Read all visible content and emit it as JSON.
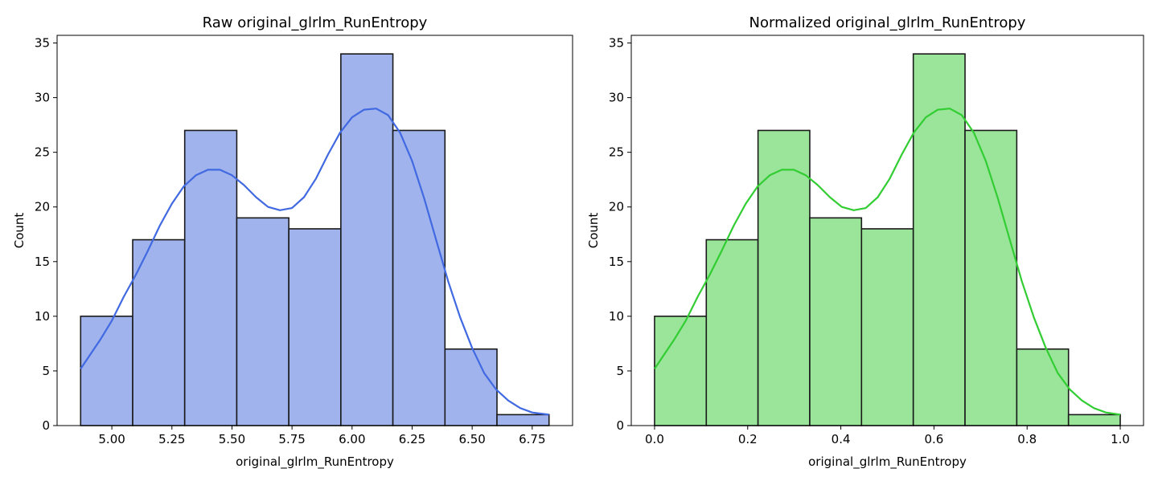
{
  "chart_data": [
    {
      "type": "bar",
      "title": "Raw original_glrlm_RunEntropy",
      "xlabel": "original_glrlm_RunEntropy",
      "ylabel": "Count",
      "bin_edges": [
        4.87,
        5.0867,
        5.3033,
        5.52,
        5.7367,
        5.9533,
        6.17,
        6.3867,
        6.6033,
        6.82
      ],
      "values": [
        10,
        17,
        27,
        19,
        18,
        34,
        27,
        7,
        1
      ],
      "xlim": [
        4.772,
        6.918
      ],
      "ylim": [
        0,
        35.7
      ],
      "xticks": [
        5.0,
        5.25,
        5.5,
        5.75,
        6.0,
        6.25,
        6.5,
        6.75
      ],
      "xtick_labels": [
        "5.00",
        "5.25",
        "5.50",
        "5.75",
        "6.00",
        "6.25",
        "6.50",
        "6.75"
      ],
      "yticks": [
        0,
        5,
        10,
        15,
        20,
        25,
        30,
        35
      ],
      "ytick_labels": [
        "0",
        "5",
        "10",
        "15",
        "20",
        "25",
        "30",
        "35"
      ],
      "kde": {
        "x": [
          4.87,
          4.95,
          5.0,
          5.05,
          5.1,
          5.15,
          5.2,
          5.25,
          5.3,
          5.35,
          5.4,
          5.45,
          5.5,
          5.55,
          5.6,
          5.65,
          5.7,
          5.75,
          5.8,
          5.85,
          5.9,
          5.95,
          6.0,
          6.05,
          6.1,
          6.15,
          6.2,
          6.25,
          6.3,
          6.35,
          6.4,
          6.45,
          6.5,
          6.55,
          6.6,
          6.65,
          6.7,
          6.75,
          6.82
        ],
        "y": [
          5.2,
          7.8,
          9.6,
          11.8,
          13.8,
          16.0,
          18.3,
          20.3,
          21.9,
          22.9,
          23.4,
          23.4,
          22.9,
          22.0,
          20.9,
          20.0,
          19.7,
          19.9,
          20.9,
          22.6,
          24.8,
          26.8,
          28.2,
          28.9,
          29.0,
          28.4,
          26.8,
          24.2,
          20.8,
          17.0,
          13.2,
          9.9,
          7.1,
          4.8,
          3.3,
          2.3,
          1.6,
          1.2,
          1.0
        ]
      },
      "colors": {
        "bar": "#a0b3ed",
        "edge": "#1a1a1a",
        "line": "#4169e1"
      }
    },
    {
      "type": "bar",
      "title": "Normalized original_glrlm_RunEntropy",
      "xlabel": "original_glrlm_RunEntropy",
      "ylabel": "Count",
      "bin_edges": [
        0.0,
        0.1111,
        0.2222,
        0.3333,
        0.4444,
        0.5556,
        0.6667,
        0.7778,
        0.8889,
        1.0
      ],
      "values": [
        10,
        17,
        27,
        19,
        18,
        34,
        27,
        7,
        1
      ],
      "xlim": [
        -0.05,
        1.05
      ],
      "ylim": [
        0,
        35.7
      ],
      "xticks": [
        0.0,
        0.2,
        0.4,
        0.6,
        0.8,
        1.0
      ],
      "xtick_labels": [
        "0.0",
        "0.2",
        "0.4",
        "0.6",
        "0.8",
        "1.0"
      ],
      "yticks": [
        0,
        5,
        10,
        15,
        20,
        25,
        30,
        35
      ],
      "ytick_labels": [
        "0",
        "5",
        "10",
        "15",
        "20",
        "25",
        "30",
        "35"
      ],
      "kde": {
        "x": [
          0.0,
          0.0412,
          0.067,
          0.0928,
          0.1186,
          0.1443,
          0.1701,
          0.1959,
          0.2216,
          0.2474,
          0.2732,
          0.299,
          0.3247,
          0.3505,
          0.3763,
          0.4021,
          0.4278,
          0.4536,
          0.4794,
          0.5052,
          0.5309,
          0.5567,
          0.5825,
          0.6082,
          0.634,
          0.6598,
          0.6856,
          0.7113,
          0.7371,
          0.7629,
          0.7887,
          0.8144,
          0.8402,
          0.866,
          0.8918,
          0.9175,
          0.9433,
          0.9691,
          1.0
        ],
        "y": [
          5.2,
          7.8,
          9.6,
          11.8,
          13.8,
          16.0,
          18.3,
          20.3,
          21.9,
          22.9,
          23.4,
          23.4,
          22.9,
          22.0,
          20.9,
          20.0,
          19.7,
          19.9,
          20.9,
          22.6,
          24.8,
          26.8,
          28.2,
          28.9,
          29.0,
          28.4,
          26.8,
          24.2,
          20.8,
          17.0,
          13.2,
          9.9,
          7.1,
          4.8,
          3.3,
          2.3,
          1.6,
          1.2,
          1.0
        ]
      },
      "colors": {
        "bar": "#9ae59a",
        "edge": "#1a1a1a",
        "line": "#32cd32"
      }
    }
  ]
}
